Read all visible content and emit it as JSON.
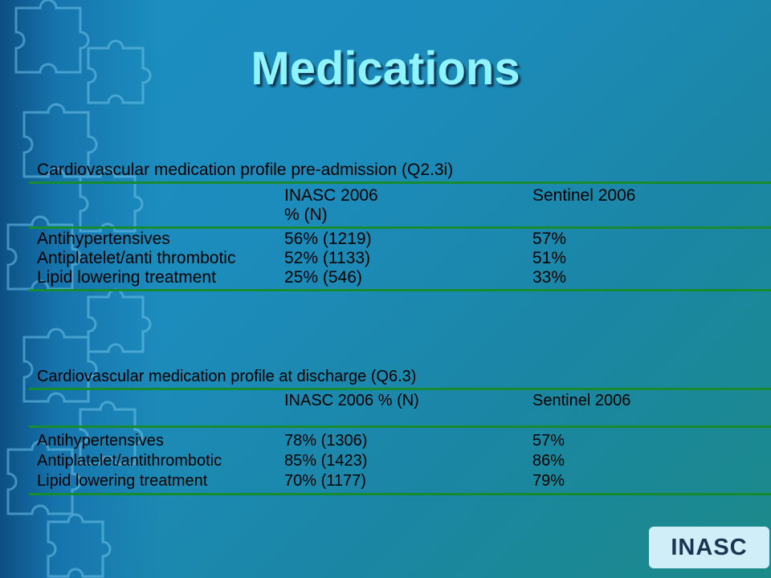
{
  "slide": {
    "title": "Medications",
    "logo_text": "INASC"
  },
  "table1": {
    "caption": "Cardiovascular medication profile pre-admission (Q2.3i)",
    "header": [
      "INASC 2006",
      "% (N)",
      "Sentinel 2006"
    ],
    "rows": [
      [
        "Antihypertensives",
        "56% (1219)",
        "57%"
      ],
      [
        "Antiplatelet/anti thrombotic",
        "52% (1133)",
        "51%"
      ],
      [
        "Lipid lowering treatment",
        "25% (546)",
        "33%"
      ]
    ]
  },
  "table2": {
    "caption": "Cardiovascular medication profile at discharge (Q6.3)",
    "header": [
      "INASC 2006 % (N)",
      "Sentinel 2006"
    ],
    "rows": [
      [
        "Antihypertensives",
        "78% (1306)",
        "57%"
      ],
      [
        "Antiplatelet/antithrombotic",
        "85% (1423)",
        "86%"
      ],
      [
        "Lipid lowering treatment",
        "70% (1177)",
        "79%"
      ]
    ]
  },
  "colors": {
    "background": "#1b8fc0",
    "title": "#8ff4ff",
    "rule": "#178b2f",
    "badge_bg": "#cfeef8",
    "badge_text": "#1a3552"
  }
}
